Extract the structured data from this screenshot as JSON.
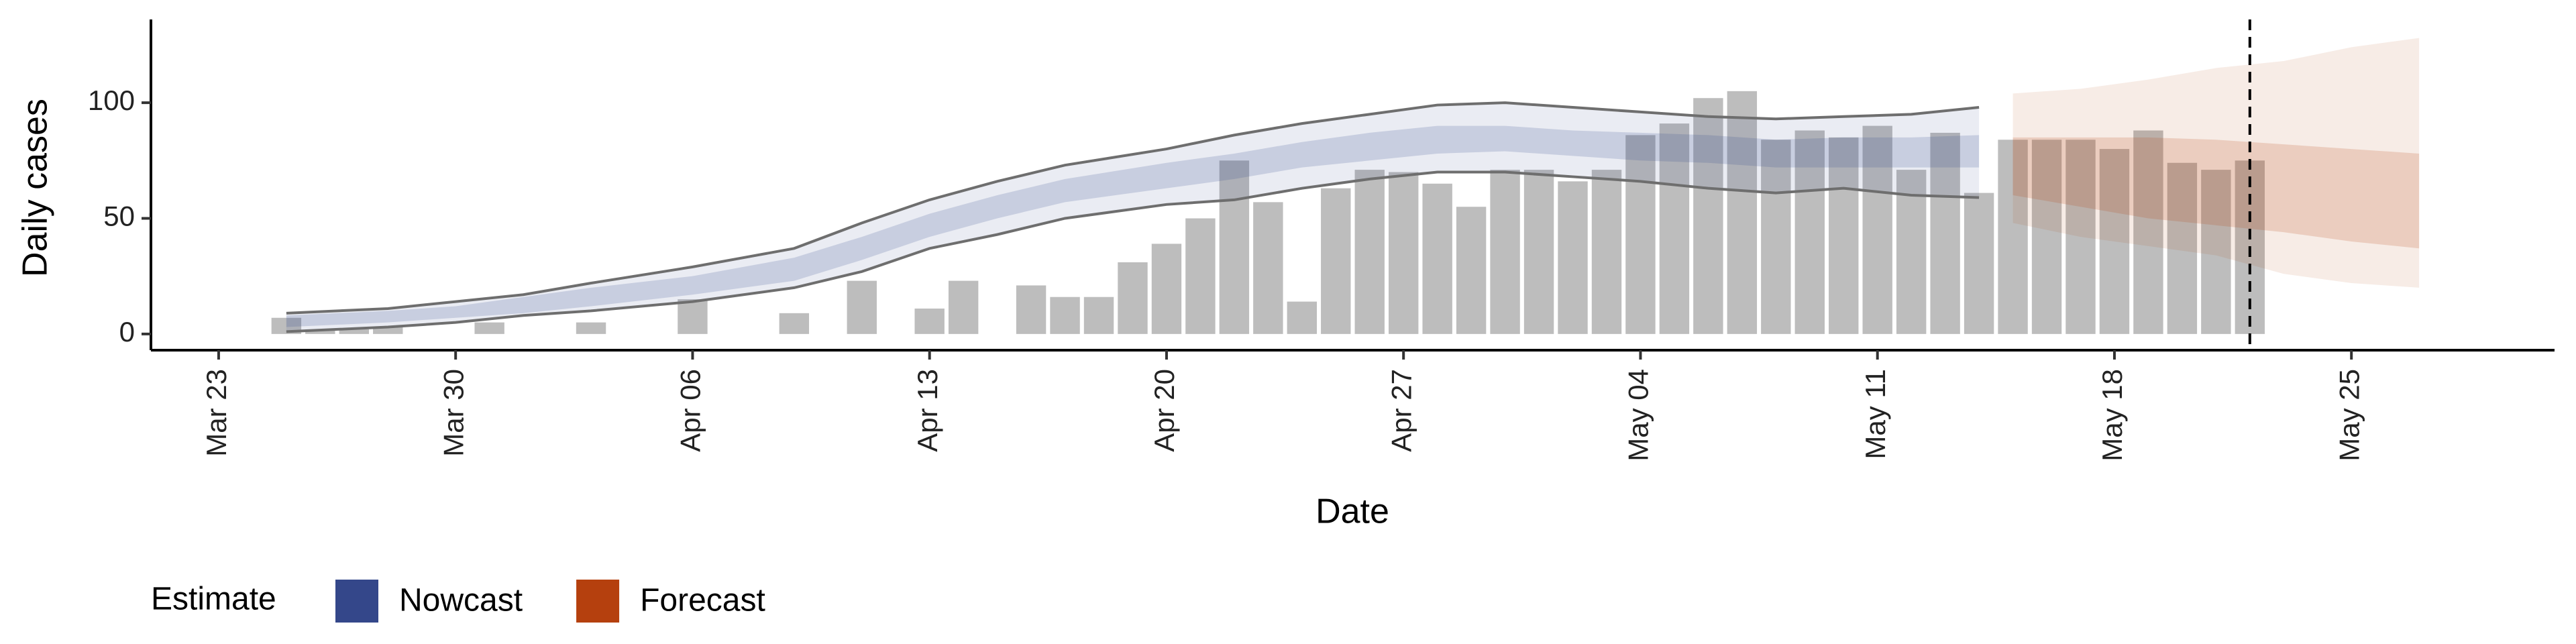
{
  "chart_data": {
    "type": "bar",
    "y_label": "Daily cases",
    "x_label": "Date",
    "legend_title": "Estimate",
    "x": [
      "Mar 25",
      "Mar 26",
      "Mar 27",
      "Mar 28",
      "Mar 29",
      "Mar 30",
      "Mar 31",
      "Apr 01",
      "Apr 02",
      "Apr 03",
      "Apr 04",
      "Apr 05",
      "Apr 06",
      "Apr 07",
      "Apr 08",
      "Apr 09",
      "Apr 10",
      "Apr 11",
      "Apr 12",
      "Apr 13",
      "Apr 14",
      "Apr 15",
      "Apr 16",
      "Apr 17",
      "Apr 18",
      "Apr 19",
      "Apr 20",
      "Apr 21",
      "Apr 22",
      "Apr 23",
      "Apr 24",
      "Apr 25",
      "Apr 26",
      "Apr 27",
      "Apr 28",
      "Apr 29",
      "Apr 30",
      "May 01",
      "May 02",
      "May 03",
      "May 04",
      "May 05",
      "May 06",
      "May 07",
      "May 08",
      "May 09",
      "May 10",
      "May 11",
      "May 12",
      "May 13",
      "May 14",
      "May 15",
      "May 16",
      "May 17",
      "May 18",
      "May 19",
      "May 20",
      "May 21",
      "May 22"
    ],
    "values": [
      7,
      2,
      2,
      3,
      0,
      0,
      5,
      0,
      0,
      5,
      0,
      0,
      15,
      0,
      0,
      9,
      0,
      23,
      0,
      11,
      23,
      0,
      21,
      16,
      16,
      31,
      39,
      50,
      75,
      57,
      14,
      63,
      71,
      70,
      65,
      55,
      71,
      71,
      66,
      71,
      86,
      91,
      102,
      105,
      84,
      88,
      85,
      90,
      71,
      87,
      61,
      84,
      84,
      84,
      80,
      88,
      74,
      71,
      75
    ],
    "color": "#bdbdbd",
    "bands": [
      {
        "name": "Nowcast",
        "color": "#34478a",
        "line_color": "#6e6e6e",
        "x": [
          "Mar 25",
          "Mar 28",
          "Mar 30",
          "Apr 01",
          "Apr 03",
          "Apr 06",
          "Apr 09",
          "Apr 11",
          "Apr 13",
          "Apr 15",
          "Apr 17",
          "Apr 20",
          "Apr 22",
          "Apr 24",
          "Apr 26",
          "Apr 28",
          "Apr 30",
          "May 02",
          "May 04",
          "May 06",
          "May 08",
          "May 10",
          "May 12",
          "May 14"
        ],
        "upper90": [
          9,
          11,
          14,
          17,
          22,
          29,
          37,
          48,
          58,
          66,
          73,
          80,
          86,
          91,
          95,
          99,
          100,
          98,
          96,
          94,
          93,
          94,
          95,
          98
        ],
        "lower90": [
          1,
          3,
          5,
          8,
          10,
          14,
          20,
          27,
          37,
          43,
          50,
          56,
          58,
          63,
          67,
          70,
          70,
          68,
          66,
          63,
          61,
          63,
          60,
          59
        ],
        "upper50": [
          8,
          10,
          12,
          16,
          20,
          25,
          33,
          42,
          52,
          60,
          67,
          74,
          78,
          83,
          87,
          90,
          90,
          88,
          87,
          86,
          84,
          85,
          85,
          86
        ],
        "lower50": [
          3,
          5,
          7,
          9,
          12,
          17,
          23,
          32,
          42,
          50,
          57,
          63,
          67,
          72,
          75,
          78,
          79,
          77,
          75,
          74,
          72,
          72,
          72,
          72
        ]
      },
      {
        "name": "Forecast",
        "color": "#b5400e",
        "x": [
          "May 15",
          "May 17",
          "May 19",
          "May 21",
          "May 23",
          "May 25",
          "May 27"
        ],
        "upper90": [
          104,
          106,
          110,
          115,
          118,
          124,
          128
        ],
        "lower90": [
          48,
          42,
          38,
          34,
          26,
          22,
          20
        ],
        "upper50": [
          85,
          85,
          85,
          84,
          82,
          80,
          78
        ],
        "lower50": [
          60,
          55,
          50,
          47,
          44,
          40,
          37
        ]
      }
    ],
    "vline": "May 22",
    "xlim": [
      "Mar 21",
      "May 31"
    ],
    "xticks": [
      "Mar 23",
      "Mar 30",
      "Apr 06",
      "Apr 13",
      "Apr 20",
      "Apr 27",
      "May 04",
      "May 11",
      "May 18",
      "May 25"
    ],
    "ylim": [
      -7,
      136
    ],
    "yticks": [
      0,
      50,
      100
    ]
  }
}
